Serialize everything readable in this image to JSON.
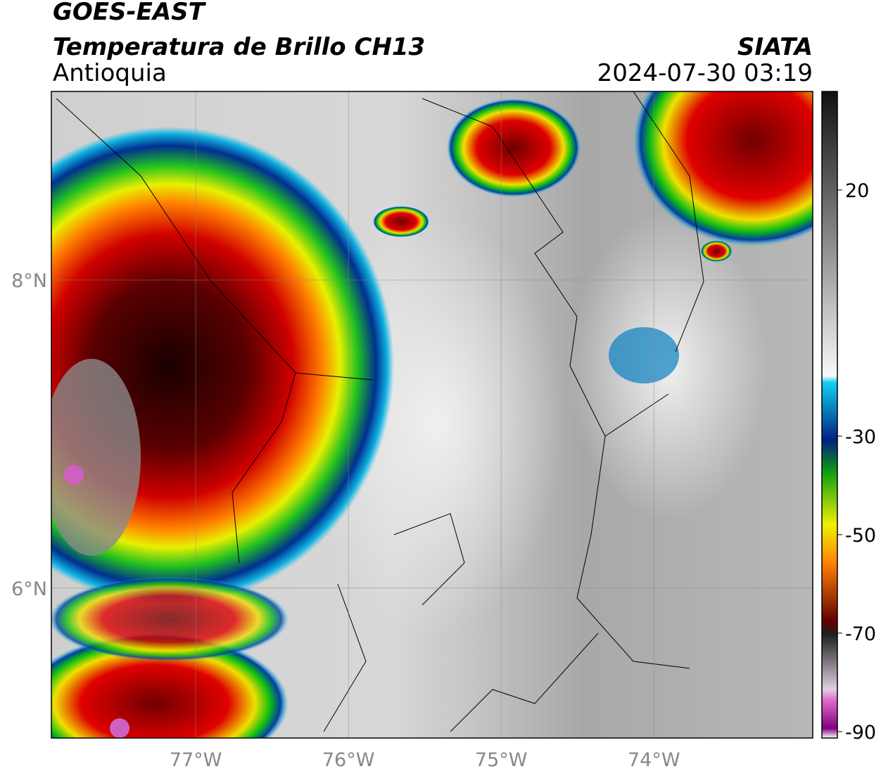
{
  "header": {
    "title": "GOES-EAST",
    "subtitle": "Temperatura de Brillo CH13",
    "region": "Antioquia",
    "source": "SIATA",
    "timestamp": "2024-07-30 03:19"
  },
  "map": {
    "xlim": [
      -77.945,
      -72.96
    ],
    "ylim": [
      5.027,
      9.224
    ],
    "xticks": [
      {
        "value": -77,
        "label": "77°W"
      },
      {
        "value": -76,
        "label": "76°W"
      },
      {
        "value": -75,
        "label": "75°W"
      },
      {
        "value": -74,
        "label": "74°W"
      }
    ],
    "yticks": [
      {
        "value": 6,
        "label": "6°N"
      },
      {
        "value": 8,
        "label": "8°N"
      }
    ],
    "grid": true
  },
  "colorbar": {
    "lim": [
      -91.3,
      40
    ],
    "ticks": [
      20,
      -30,
      -50,
      -70,
      -90
    ]
  }
}
